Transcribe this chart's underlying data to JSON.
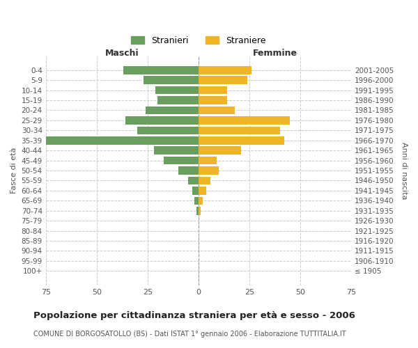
{
  "age_groups": [
    "100+",
    "95-99",
    "90-94",
    "85-89",
    "80-84",
    "75-79",
    "70-74",
    "65-69",
    "60-64",
    "55-59",
    "50-54",
    "45-49",
    "40-44",
    "35-39",
    "30-34",
    "25-29",
    "20-24",
    "15-19",
    "10-14",
    "5-9",
    "0-4"
  ],
  "birth_years": [
    "≤ 1905",
    "1906-1910",
    "1911-1915",
    "1916-1920",
    "1921-1925",
    "1926-1930",
    "1931-1935",
    "1936-1940",
    "1941-1945",
    "1946-1950",
    "1951-1955",
    "1956-1960",
    "1961-1965",
    "1966-1970",
    "1971-1975",
    "1976-1980",
    "1981-1985",
    "1986-1990",
    "1991-1995",
    "1996-2000",
    "2001-2005"
  ],
  "males": [
    0,
    0,
    0,
    0,
    0,
    0,
    1,
    2,
    3,
    5,
    10,
    17,
    22,
    75,
    30,
    36,
    26,
    20,
    21,
    27,
    37
  ],
  "females": [
    0,
    0,
    0,
    0,
    0,
    0,
    1,
    2,
    4,
    6,
    10,
    9,
    21,
    42,
    40,
    45,
    18,
    14,
    14,
    24,
    26
  ],
  "male_color": "#6a9e5e",
  "female_color": "#f0b429",
  "background_color": "#ffffff",
  "grid_color": "#cccccc",
  "title": "Popolazione per cittadinanza straniera per età e sesso - 2006",
  "subtitle": "COMUNE DI BORGOSATOLLO (BS) - Dati ISTAT 1° gennaio 2006 - Elaborazione TUTTITALIA.IT",
  "xlabel_left": "Maschi",
  "xlabel_right": "Femmine",
  "ylabel_left": "Fasce di età",
  "ylabel_right": "Anni di nascita",
  "legend_males": "Stranieri",
  "legend_females": "Straniere",
  "xlim": 75,
  "bar_height": 0.8
}
